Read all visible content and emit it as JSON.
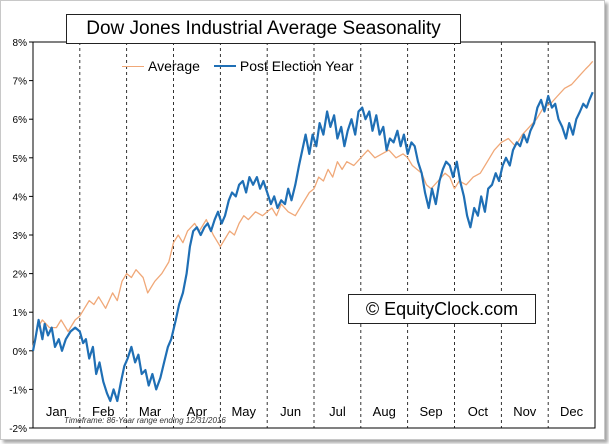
{
  "chart_data": {
    "type": "line",
    "title": "Dow Jones Industrial Average Seasonality",
    "watermark": "© EquityClock.com",
    "footnote": "Timeframe: 86-Year range ending 12/31/2016",
    "ylim": [
      -2,
      8
    ],
    "y_ticks": [
      "-2%",
      "-1%",
      "0%",
      "1%",
      "2%",
      "3%",
      "4%",
      "5%",
      "6%",
      "7%",
      "8%"
    ],
    "months": [
      "Jan",
      "Feb",
      "Mar",
      "Apr",
      "May",
      "Jun",
      "Jul",
      "Aug",
      "Sep",
      "Oct",
      "Nov",
      "Dec"
    ],
    "grid": "vertical dashed month separators",
    "legend_position": "top-left",
    "series": [
      {
        "name": "Average",
        "color": "#f0a878",
        "points": [
          [
            0,
            0.1
          ],
          [
            0.1,
            0.6
          ],
          [
            0.2,
            0.8
          ],
          [
            0.35,
            0.6
          ],
          [
            0.5,
            0.6
          ],
          [
            0.6,
            0.8
          ],
          [
            0.75,
            0.5
          ],
          [
            0.9,
            0.8
          ],
          [
            1.0,
            0.9
          ],
          [
            1.1,
            1.1
          ],
          [
            1.2,
            1.3
          ],
          [
            1.3,
            1.2
          ],
          [
            1.4,
            1.4
          ],
          [
            1.55,
            1.1
          ],
          [
            1.7,
            1.5
          ],
          [
            1.8,
            1.3
          ],
          [
            1.9,
            1.8
          ],
          [
            2.0,
            2.0
          ],
          [
            2.1,
            1.9
          ],
          [
            2.2,
            2.1
          ],
          [
            2.35,
            1.9
          ],
          [
            2.45,
            1.5
          ],
          [
            2.6,
            1.8
          ],
          [
            2.75,
            2.0
          ],
          [
            2.9,
            2.3
          ],
          [
            3.0,
            2.8
          ],
          [
            3.1,
            3.0
          ],
          [
            3.2,
            2.8
          ],
          [
            3.3,
            3.1
          ],
          [
            3.45,
            3.3
          ],
          [
            3.55,
            3.1
          ],
          [
            3.7,
            3.4
          ],
          [
            3.85,
            3.0
          ],
          [
            4.0,
            2.7
          ],
          [
            4.1,
            2.9
          ],
          [
            4.2,
            3.1
          ],
          [
            4.3,
            3.0
          ],
          [
            4.4,
            3.3
          ],
          [
            4.5,
            3.5
          ],
          [
            4.6,
            3.4
          ],
          [
            4.75,
            3.6
          ],
          [
            4.9,
            3.5
          ],
          [
            5.0,
            3.6
          ],
          [
            5.1,
            3.7
          ],
          [
            5.2,
            3.5
          ],
          [
            5.3,
            3.8
          ],
          [
            5.45,
            3.6
          ],
          [
            5.6,
            3.5
          ],
          [
            5.75,
            3.8
          ],
          [
            5.9,
            4.1
          ],
          [
            6.0,
            4.2
          ],
          [
            6.1,
            4.5
          ],
          [
            6.2,
            4.4
          ],
          [
            6.3,
            4.7
          ],
          [
            6.4,
            4.5
          ],
          [
            6.5,
            4.9
          ],
          [
            6.6,
            4.7
          ],
          [
            6.7,
            4.9
          ],
          [
            6.85,
            4.8
          ],
          [
            7.0,
            5.0
          ],
          [
            7.15,
            5.2
          ],
          [
            7.3,
            5.0
          ],
          [
            7.45,
            5.1
          ],
          [
            7.6,
            5.2
          ],
          [
            7.75,
            5.0
          ],
          [
            7.9,
            5.1
          ],
          [
            8.0,
            5.0
          ],
          [
            8.1,
            4.8
          ],
          [
            8.2,
            4.7
          ],
          [
            8.3,
            4.6
          ],
          [
            8.4,
            4.3
          ],
          [
            8.5,
            4.2
          ],
          [
            8.65,
            4.4
          ],
          [
            8.8,
            4.6
          ],
          [
            8.9,
            4.5
          ],
          [
            9.0,
            4.2
          ],
          [
            9.1,
            4.4
          ],
          [
            9.25,
            4.3
          ],
          [
            9.4,
            4.5
          ],
          [
            9.55,
            4.6
          ],
          [
            9.7,
            4.9
          ],
          [
            9.85,
            5.2
          ],
          [
            10.0,
            5.4
          ],
          [
            10.15,
            5.5
          ],
          [
            10.3,
            5.3
          ],
          [
            10.45,
            5.6
          ],
          [
            10.6,
            5.8
          ],
          [
            10.75,
            6.0
          ],
          [
            10.9,
            6.3
          ],
          [
            11.05,
            6.4
          ],
          [
            11.2,
            6.6
          ],
          [
            11.35,
            6.8
          ],
          [
            11.5,
            6.9
          ],
          [
            11.65,
            7.1
          ],
          [
            11.8,
            7.3
          ],
          [
            11.88,
            7.4
          ],
          [
            11.95,
            7.5
          ]
        ]
      },
      {
        "name": "Post Election Year",
        "color": "#1f6fb5",
        "points": [
          [
            0,
            0
          ],
          [
            0.05,
            0.3
          ],
          [
            0.12,
            0.8
          ],
          [
            0.2,
            0.3
          ],
          [
            0.25,
            0.7
          ],
          [
            0.32,
            0.4
          ],
          [
            0.4,
            0.6
          ],
          [
            0.47,
            0.1
          ],
          [
            0.55,
            0.3
          ],
          [
            0.62,
            0.0
          ],
          [
            0.7,
            0.3
          ],
          [
            0.8,
            0.5
          ],
          [
            0.9,
            0.6
          ],
          [
            1.0,
            0.5
          ],
          [
            1.07,
            0.2
          ],
          [
            1.13,
            0.3
          ],
          [
            1.2,
            -0.2
          ],
          [
            1.28,
            0.1
          ],
          [
            1.35,
            -0.6
          ],
          [
            1.42,
            -0.3
          ],
          [
            1.5,
            -0.8
          ],
          [
            1.58,
            -1.1
          ],
          [
            1.65,
            -1.3
          ],
          [
            1.72,
            -1.0
          ],
          [
            1.8,
            -1.3
          ],
          [
            1.88,
            -0.8
          ],
          [
            1.95,
            -0.4
          ],
          [
            2.02,
            -0.2
          ],
          [
            2.1,
            0.1
          ],
          [
            2.18,
            -0.3
          ],
          [
            2.25,
            -0.1
          ],
          [
            2.32,
            -0.6
          ],
          [
            2.4,
            -0.5
          ],
          [
            2.47,
            -0.9
          ],
          [
            2.55,
            -0.6
          ],
          [
            2.63,
            -1.0
          ],
          [
            2.72,
            -0.7
          ],
          [
            2.8,
            -0.3
          ],
          [
            2.88,
            0.1
          ],
          [
            2.95,
            0.3
          ],
          [
            3.05,
            0.8
          ],
          [
            3.12,
            1.2
          ],
          [
            3.2,
            1.5
          ],
          [
            3.28,
            2.0
          ],
          [
            3.35,
            2.7
          ],
          [
            3.42,
            3.1
          ],
          [
            3.5,
            3.2
          ],
          [
            3.58,
            3.0
          ],
          [
            3.66,
            3.2
          ],
          [
            3.73,
            3.3
          ],
          [
            3.8,
            3.1
          ],
          [
            3.88,
            3.4
          ],
          [
            3.95,
            3.6
          ],
          [
            4.03,
            3.3
          ],
          [
            4.1,
            3.5
          ],
          [
            4.18,
            3.9
          ],
          [
            4.25,
            4.1
          ],
          [
            4.33,
            4.0
          ],
          [
            4.4,
            4.3
          ],
          [
            4.48,
            4.4
          ],
          [
            4.55,
            4.1
          ],
          [
            4.62,
            4.5
          ],
          [
            4.7,
            4.3
          ],
          [
            4.78,
            4.5
          ],
          [
            4.85,
            4.2
          ],
          [
            4.92,
            4.4
          ],
          [
            5.0,
            4.1
          ],
          [
            5.08,
            3.8
          ],
          [
            5.15,
            4.0
          ],
          [
            5.22,
            3.7
          ],
          [
            5.3,
            3.9
          ],
          [
            5.38,
            3.8
          ],
          [
            5.45,
            4.2
          ],
          [
            5.52,
            3.9
          ],
          [
            5.6,
            4.3
          ],
          [
            5.68,
            4.8
          ],
          [
            5.75,
            5.2
          ],
          [
            5.82,
            5.6
          ],
          [
            5.9,
            5.1
          ],
          [
            5.97,
            5.6
          ],
          [
            6.05,
            5.3
          ],
          [
            6.12,
            5.9
          ],
          [
            6.2,
            5.6
          ],
          [
            6.28,
            6.2
          ],
          [
            6.35,
            5.8
          ],
          [
            6.43,
            6.1
          ],
          [
            6.5,
            5.5
          ],
          [
            6.58,
            5.8
          ],
          [
            6.65,
            5.3
          ],
          [
            6.72,
            5.7
          ],
          [
            6.8,
            6.0
          ],
          [
            6.88,
            5.6
          ],
          [
            6.95,
            6.2
          ],
          [
            7.03,
            6.3
          ],
          [
            7.1,
            6.0
          ],
          [
            7.18,
            6.2
          ],
          [
            7.25,
            5.7
          ],
          [
            7.33,
            6.1
          ],
          [
            7.4,
            5.6
          ],
          [
            7.48,
            5.8
          ],
          [
            7.55,
            5.2
          ],
          [
            7.62,
            5.5
          ],
          [
            7.7,
            5.4
          ],
          [
            7.78,
            5.7
          ],
          [
            7.85,
            5.3
          ],
          [
            7.92,
            5.6
          ],
          [
            8.0,
            5.1
          ],
          [
            8.08,
            5.4
          ],
          [
            8.15,
            5.3
          ],
          [
            8.22,
            4.9
          ],
          [
            8.3,
            4.6
          ],
          [
            8.37,
            4.1
          ],
          [
            8.45,
            3.7
          ],
          [
            8.52,
            4.2
          ],
          [
            8.6,
            3.8
          ],
          [
            8.68,
            4.4
          ],
          [
            8.75,
            4.7
          ],
          [
            8.82,
            4.9
          ],
          [
            8.9,
            4.8
          ],
          [
            8.97,
            4.5
          ],
          [
            9.05,
            4.9
          ],
          [
            9.12,
            4.4
          ],
          [
            9.2,
            4.0
          ],
          [
            9.27,
            3.5
          ],
          [
            9.34,
            3.2
          ],
          [
            9.42,
            3.7
          ],
          [
            9.5,
            3.5
          ],
          [
            9.57,
            4.0
          ],
          [
            9.65,
            3.6
          ],
          [
            9.72,
            4.2
          ],
          [
            9.8,
            4.3
          ],
          [
            9.88,
            4.6
          ],
          [
            9.95,
            4.4
          ],
          [
            10.03,
            4.8
          ],
          [
            10.1,
            5.0
          ],
          [
            10.18,
            4.8
          ],
          [
            10.25,
            5.2
          ],
          [
            10.33,
            5.4
          ],
          [
            10.4,
            5.3
          ],
          [
            10.48,
            5.6
          ],
          [
            10.55,
            5.4
          ],
          [
            10.62,
            5.7
          ],
          [
            10.7,
            5.9
          ],
          [
            10.77,
            6.3
          ],
          [
            10.85,
            6.5
          ],
          [
            10.92,
            6.2
          ],
          [
            11.0,
            6.6
          ],
          [
            11.08,
            6.3
          ],
          [
            11.15,
            6.4
          ],
          [
            11.22,
            6.0
          ],
          [
            11.3,
            5.8
          ],
          [
            11.38,
            5.5
          ],
          [
            11.45,
            5.9
          ],
          [
            11.53,
            5.6
          ],
          [
            11.6,
            6.0
          ],
          [
            11.68,
            6.2
          ],
          [
            11.75,
            6.4
          ],
          [
            11.82,
            6.3
          ],
          [
            11.88,
            6.5
          ],
          [
            11.95,
            6.7
          ]
        ]
      }
    ]
  }
}
